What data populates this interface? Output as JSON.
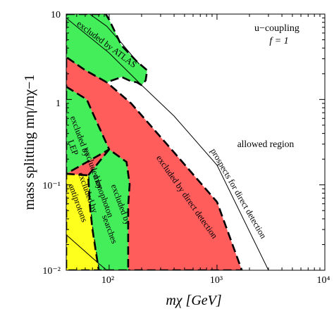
{
  "chart_data": {
    "type": "area",
    "xscale": "log",
    "yscale": "log",
    "xlim": [
      40,
      10000
    ],
    "ylim": [
      0.01,
      10
    ],
    "x_ticks": [
      {
        "value": 100,
        "label": "10²"
      },
      {
        "value": 1000,
        "label": "10³"
      },
      {
        "value": 10000,
        "label": "10⁴"
      }
    ],
    "y_ticks": [
      {
        "value": 10,
        "label": "10"
      },
      {
        "value": 1,
        "label": "1"
      },
      {
        "value": 0.1,
        "label": "10⁻¹"
      },
      {
        "value": 0.01,
        "label": "10⁻²"
      }
    ],
    "xlabel": "mχ [GeV]",
    "ylabel": "mass splitting mη/mχ−1",
    "legend": {
      "line1": "u−coupling",
      "line2": "f = 1",
      "placement": "top-right"
    },
    "annotations": {
      "allowed": "allowed region"
    },
    "colors": {
      "direct_detection": "#ff5c5c",
      "collider": "#44ee5a",
      "antiprotons": "#ffff1e"
    },
    "regions": [
      {
        "name": "excluded by direct detection",
        "color": "#ff5c5c",
        "boundary": [
          [
            40,
            0.01
          ],
          [
            40,
            3.14
          ],
          [
            95,
            1.59
          ],
          [
            160,
            0.9
          ],
          [
            400,
            0.24
          ],
          [
            1000,
            0.063
          ],
          [
            1700,
            0.01
          ]
        ]
      },
      {
        "name": "excluded by ATLAS",
        "color": "#44ee5a",
        "boundary": [
          [
            40,
            10
          ],
          [
            93,
            10
          ],
          [
            100,
            8.6
          ],
          [
            130,
            4.3
          ],
          [
            180,
            2.8
          ],
          [
            225,
            2.2
          ],
          [
            218,
            1.67
          ],
          [
            200,
            1.47
          ],
          [
            180,
            1.59
          ],
          [
            160,
            1.63
          ],
          [
            130,
            1.84
          ],
          [
            120,
            1.76
          ],
          [
            95,
            1.59
          ],
          [
            60,
            2.2
          ],
          [
            40,
            3.14
          ]
        ]
      },
      {
        "name": "excluded by LEP",
        "color": "#44ee5a",
        "boundary": [
          [
            40,
            1.41
          ],
          [
            62,
            1.0
          ],
          [
            75,
            0.58
          ],
          [
            100,
            0.26
          ],
          [
            40,
            0.135
          ]
        ]
      },
      {
        "name": "excluded by monophoton searches",
        "color": "#44ee5a",
        "boundary": [
          [
            64,
            0.129
          ],
          [
            100,
            0.26
          ],
          [
            145,
            0.185
          ],
          [
            155,
            0.101
          ],
          [
            150,
            0.058
          ],
          [
            150,
            0.01
          ],
          [
            80,
            0.01
          ],
          [
            70,
            0.03
          ],
          [
            66,
            0.06
          ]
        ]
      },
      {
        "name": "excluded by antiprotons",
        "color": "#ffff1e",
        "boundary": [
          [
            40,
            0.135
          ],
          [
            64,
            0.129
          ],
          [
            66,
            0.06
          ],
          [
            70,
            0.03
          ],
          [
            80,
            0.01
          ],
          [
            40,
            0.01
          ]
        ]
      }
    ],
    "lines": [
      {
        "name": "prospects for direct detection",
        "style": "solid",
        "points": [
          [
            40,
            9.0
          ],
          [
            100,
            3.5
          ],
          [
            200,
            1.47
          ],
          [
            400,
            0.64
          ],
          [
            1000,
            0.17
          ],
          [
            3000,
            0.01
          ]
        ]
      },
      {
        "name": "ATLAS inner contour",
        "style": "solid",
        "points": [
          [
            66,
            10
          ],
          [
            95,
            7.2
          ],
          [
            130,
            4.6
          ],
          [
            165,
            3.2
          ],
          [
            190,
            2.6
          ]
        ]
      },
      {
        "name": "antiproton inner contour",
        "style": "solid",
        "points": [
          [
            40,
            0.026
          ],
          [
            80,
            0.012
          ],
          [
            95,
            0.01
          ]
        ]
      }
    ],
    "region_labels": {
      "direct": "excluded by direct detection",
      "atlas": "excluded by ATLAS",
      "lep1": "excluded by",
      "lep2": "LEP",
      "mono1": "excluded by",
      "mono2": "monophoton",
      "mono3": "excluded by",
      "mono4": "searches",
      "anti1": "excluded by",
      "anti2": "antiprotons",
      "prospects": "prospects for direct detection"
    }
  }
}
